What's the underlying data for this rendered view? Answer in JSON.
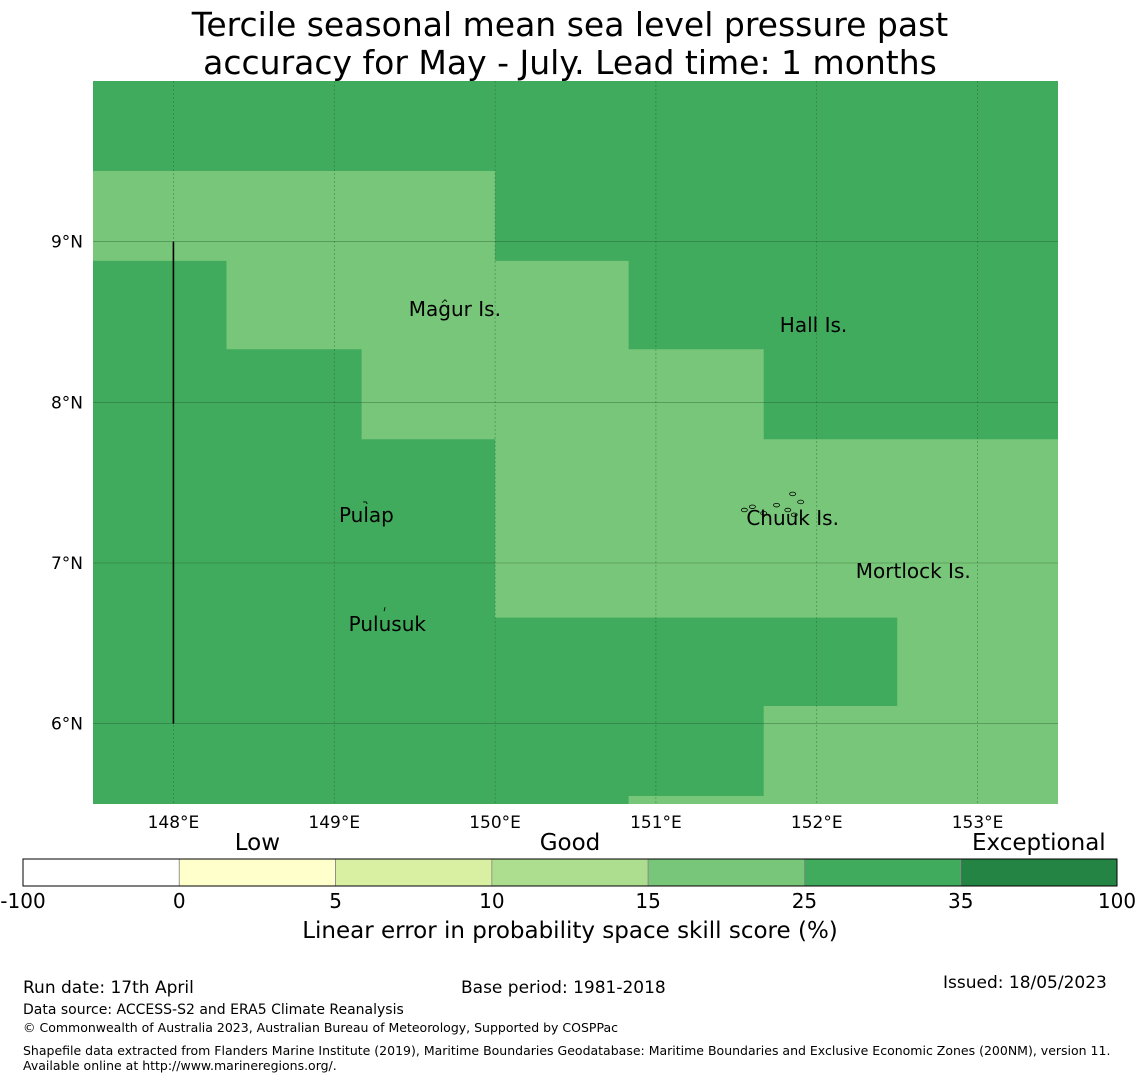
{
  "title": {
    "line1": "Tercile seasonal mean sea level pressure past",
    "line2": "accuracy for May - July. Lead time: 1 months"
  },
  "map": {
    "lon_range": [
      147.5,
      153.5
    ],
    "lat_range": [
      5.5,
      10.0
    ],
    "lon_ticks": [
      {
        "value": 148,
        "label": "148°E"
      },
      {
        "value": 149,
        "label": "149°E"
      },
      {
        "value": 150,
        "label": "150°E"
      },
      {
        "value": 151,
        "label": "151°E"
      },
      {
        "value": 152,
        "label": "152°E"
      },
      {
        "value": 153,
        "label": "153°E"
      }
    ],
    "lat_ticks": [
      {
        "value": 9,
        "label": "9°N"
      },
      {
        "value": 8,
        "label": "8°N"
      },
      {
        "value": 7,
        "label": "7°N"
      },
      {
        "value": 6,
        "label": "6°N"
      }
    ],
    "colors": {
      "background_class": "#41ab5d",
      "light_class": "#78c679",
      "gridline": "#1a4d26"
    },
    "light_regions_lonlat": [
      [
        [
          147.5,
          9.44
        ],
        [
          150.0,
          9.44
        ],
        [
          150.0,
          8.88
        ],
        [
          150.83,
          8.88
        ],
        [
          150.83,
          8.33
        ],
        [
          151.67,
          8.33
        ],
        [
          151.67,
          7.77
        ],
        [
          153.5,
          7.77
        ],
        [
          153.5,
          5.5
        ],
        [
          150.83,
          5.5
        ],
        [
          150.83,
          5.55
        ],
        [
          151.67,
          5.55
        ],
        [
          151.67,
          6.11
        ],
        [
          152.5,
          6.11
        ],
        [
          152.5,
          6.66
        ],
        [
          150.0,
          6.66
        ],
        [
          150.0,
          7.77
        ],
        [
          149.17,
          7.77
        ],
        [
          149.17,
          8.33
        ],
        [
          148.33,
          8.33
        ],
        [
          148.33,
          8.88
        ],
        [
          147.5,
          8.88
        ]
      ]
    ],
    "vertical_line": {
      "lon": 148,
      "lat_from": 6,
      "lat_to": 9
    },
    "places": [
      {
        "name": "Magur Is.",
        "lon": 149.75,
        "lat": 8.58
      },
      {
        "name": "Hall Is.",
        "lon": 151.98,
        "lat": 8.48
      },
      {
        "name": "Pulap",
        "lon": 149.2,
        "lat": 7.3
      },
      {
        "name": "Chuuk Is.",
        "lon": 151.85,
        "lat": 7.28
      },
      {
        "name": "Mortlock Is.",
        "lon": 152.6,
        "lat": 6.95
      },
      {
        "name": "Pulusuk",
        "lon": 149.33,
        "lat": 6.62
      }
    ]
  },
  "colorbar": {
    "categories": [
      {
        "label": "Low",
        "anchor_bin": 1
      },
      {
        "label": "Good",
        "anchor_bin": 3
      },
      {
        "label": "Exceptional",
        "anchor_bin": 6
      }
    ],
    "bins": [
      {
        "from": "-100",
        "to": "0",
        "color": "#ffffff"
      },
      {
        "from": "0",
        "to": "5",
        "color": "#ffffcc"
      },
      {
        "from": "5",
        "to": "10",
        "color": "#d9f0a3"
      },
      {
        "from": "10",
        "to": "15",
        "color": "#addd8e"
      },
      {
        "from": "15",
        "to": "25",
        "color": "#78c679"
      },
      {
        "from": "25",
        "to": "35",
        "color": "#41ab5d"
      },
      {
        "from": "35",
        "to": "100",
        "color": "#238443"
      }
    ],
    "tick_labels": [
      "-100",
      "0",
      "5",
      "10",
      "15",
      "25",
      "35",
      "100"
    ],
    "label": "Linear error in probability space skill score (%)"
  },
  "footer": {
    "run_date": "Run date: 17th April",
    "base_period": "Base period: 1981-2018",
    "issued": "Issued: 18/05/2023",
    "data_source": "Data source: ACCESS-S2 and ERA5 Climate Reanalysis",
    "copyright": "© Commonwealth of Australia 2023, Australian Bureau of Meteorology, Supported by COSPPac",
    "shapefile": "Shapefile data extracted from Flanders Marine Institute (2019), Maritime Boundaries Geodatabase: Maritime Boundaries and Exclusive Economic Zones (200NM), version 11. Available online at http://www.marineregions.org/."
  }
}
